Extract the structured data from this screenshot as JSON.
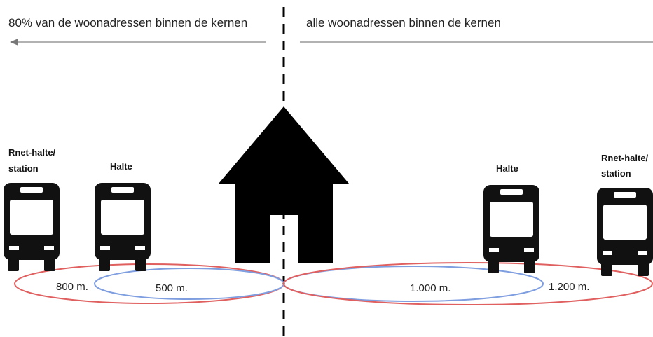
{
  "header": {
    "left": "80% van de woonadressen binnen de kernen",
    "right": "alle woonadressen binnen de kernen"
  },
  "stops": [
    {
      "label": [
        "Rnet-halte/",
        "station"
      ],
      "distance": "800 m."
    },
    {
      "label": [
        "Halte"
      ],
      "distance": "500 m."
    },
    {
      "label": [
        "Halte"
      ],
      "distance": "1.000 m."
    },
    {
      "label": [
        "Rnet-halte/",
        "station"
      ],
      "distance": "1.200 m."
    }
  ]
}
